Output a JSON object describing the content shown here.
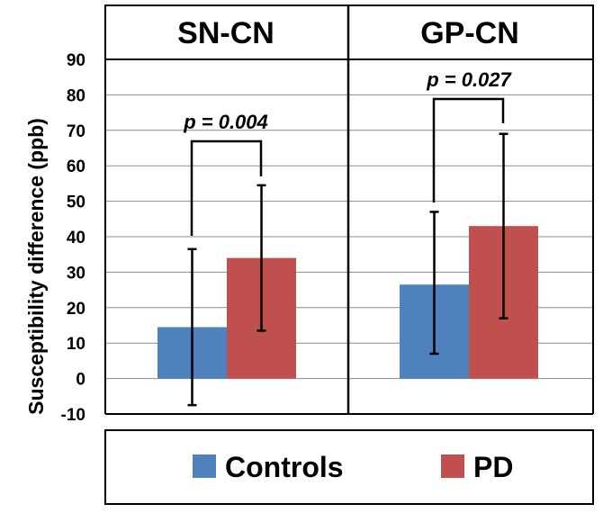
{
  "chart_data": {
    "type": "bar",
    "panels": [
      {
        "title": "SN-CN",
        "p_value": "p = 0.004",
        "series_values": {
          "Controls": 14.5,
          "PD": 34
        },
        "error_bars": {
          "Controls": [
            -7.5,
            36.5
          ],
          "PD": [
            13.5,
            54.5
          ]
        }
      },
      {
        "title": "GP-CN",
        "p_value": "p = 0.027",
        "series_values": {
          "Controls": 26.5,
          "PD": 43
        },
        "error_bars": {
          "Controls": [
            7,
            47
          ],
          "PD": [
            17,
            69
          ]
        }
      }
    ],
    "series": [
      {
        "name": "Controls",
        "color": "#4f81bd"
      },
      {
        "name": "PD",
        "color": "#c0504d"
      }
    ],
    "ylabel": "Susceptibility  difference (ppb)",
    "ylim": [
      -10,
      90
    ],
    "yticks": [
      -10,
      0,
      10,
      20,
      30,
      40,
      50,
      60,
      70,
      80,
      90
    ],
    "ytick_labels": [
      "-10",
      "0",
      "10",
      "20",
      "30",
      "40",
      "50",
      "60",
      "70",
      "80",
      "90"
    ],
    "grid": true,
    "legend_position": "bottom"
  }
}
